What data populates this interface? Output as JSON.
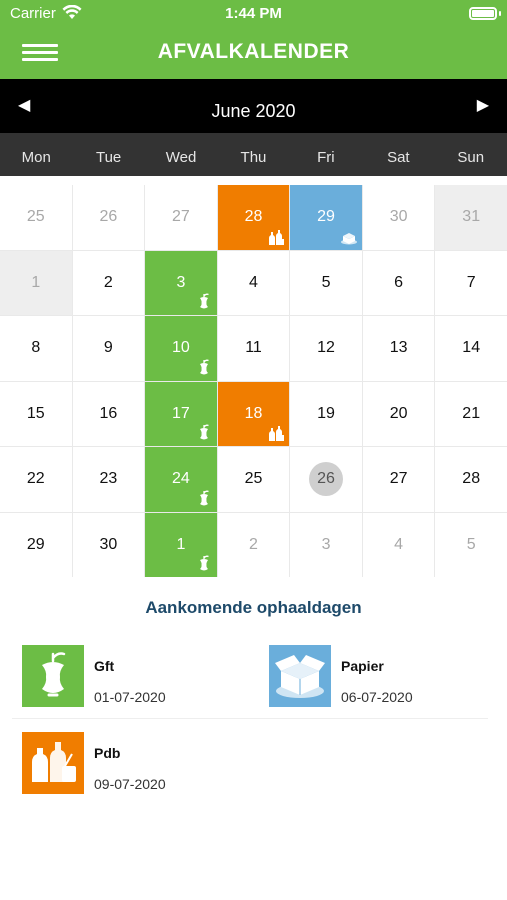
{
  "status_bar": {
    "carrier": "Carrier",
    "time": "1:44 PM"
  },
  "header": {
    "title": "AFVALKALENDER",
    "menu_icon": "hamburger-menu-icon",
    "color": "#6cbd45"
  },
  "month_nav": {
    "label": "June 2020",
    "prev": "◀",
    "next": "▶"
  },
  "weekdays": [
    "Mon",
    "Tue",
    "Wed",
    "Thu",
    "Fri",
    "Sat",
    "Sun"
  ],
  "calendar": {
    "weeks": [
      [
        {
          "day": "25",
          "type": "muted"
        },
        {
          "day": "26",
          "type": "muted"
        },
        {
          "day": "27",
          "type": "muted"
        },
        {
          "day": "28",
          "type": "pdb",
          "icon": "bottles-icon"
        },
        {
          "day": "29",
          "type": "papier",
          "icon": "box-icon"
        },
        {
          "day": "30",
          "type": "muted"
        },
        {
          "day": "31",
          "type": "muted grey"
        }
      ],
      [
        {
          "day": "1",
          "type": "muted grey"
        },
        {
          "day": "2",
          "type": ""
        },
        {
          "day": "3",
          "type": "gft",
          "icon": "apple-core-icon"
        },
        {
          "day": "4",
          "type": ""
        },
        {
          "day": "5",
          "type": ""
        },
        {
          "day": "6",
          "type": ""
        },
        {
          "day": "7",
          "type": ""
        }
      ],
      [
        {
          "day": "8",
          "type": ""
        },
        {
          "day": "9",
          "type": ""
        },
        {
          "day": "10",
          "type": "gft",
          "icon": "apple-core-icon"
        },
        {
          "day": "11",
          "type": ""
        },
        {
          "day": "12",
          "type": ""
        },
        {
          "day": "13",
          "type": ""
        },
        {
          "day": "14",
          "type": ""
        }
      ],
      [
        {
          "day": "15",
          "type": ""
        },
        {
          "day": "16",
          "type": ""
        },
        {
          "day": "17",
          "type": "gft",
          "icon": "apple-core-icon"
        },
        {
          "day": "18",
          "type": "pdb",
          "icon": "bottles-icon"
        },
        {
          "day": "19",
          "type": ""
        },
        {
          "day": "20",
          "type": ""
        },
        {
          "day": "21",
          "type": ""
        }
      ],
      [
        {
          "day": "22",
          "type": ""
        },
        {
          "day": "23",
          "type": ""
        },
        {
          "day": "24",
          "type": "gft",
          "icon": "apple-core-icon"
        },
        {
          "day": "25",
          "type": ""
        },
        {
          "day": "26",
          "type": "today"
        },
        {
          "day": "27",
          "type": ""
        },
        {
          "day": "28",
          "type": ""
        }
      ],
      [
        {
          "day": "29",
          "type": ""
        },
        {
          "day": "30",
          "type": ""
        },
        {
          "day": "1",
          "type": "gft",
          "icon": "apple-core-icon"
        },
        {
          "day": "2",
          "type": "muted"
        },
        {
          "day": "3",
          "type": "muted"
        },
        {
          "day": "4",
          "type": "muted"
        },
        {
          "day": "5",
          "type": "muted"
        }
      ]
    ]
  },
  "upcoming": {
    "title": "Aankomende ophaaldagen",
    "items": [
      {
        "name": "Gft",
        "date": "01-07-2020",
        "icon": "apple-core-icon",
        "color": "#6cbd45"
      },
      {
        "name": "Papier",
        "date": "06-07-2020",
        "icon": "box-icon",
        "color": "#6aaedb"
      },
      {
        "name": "Pdb",
        "date": "09-07-2020",
        "icon": "bottles-icon",
        "color": "#f07d00"
      }
    ]
  }
}
